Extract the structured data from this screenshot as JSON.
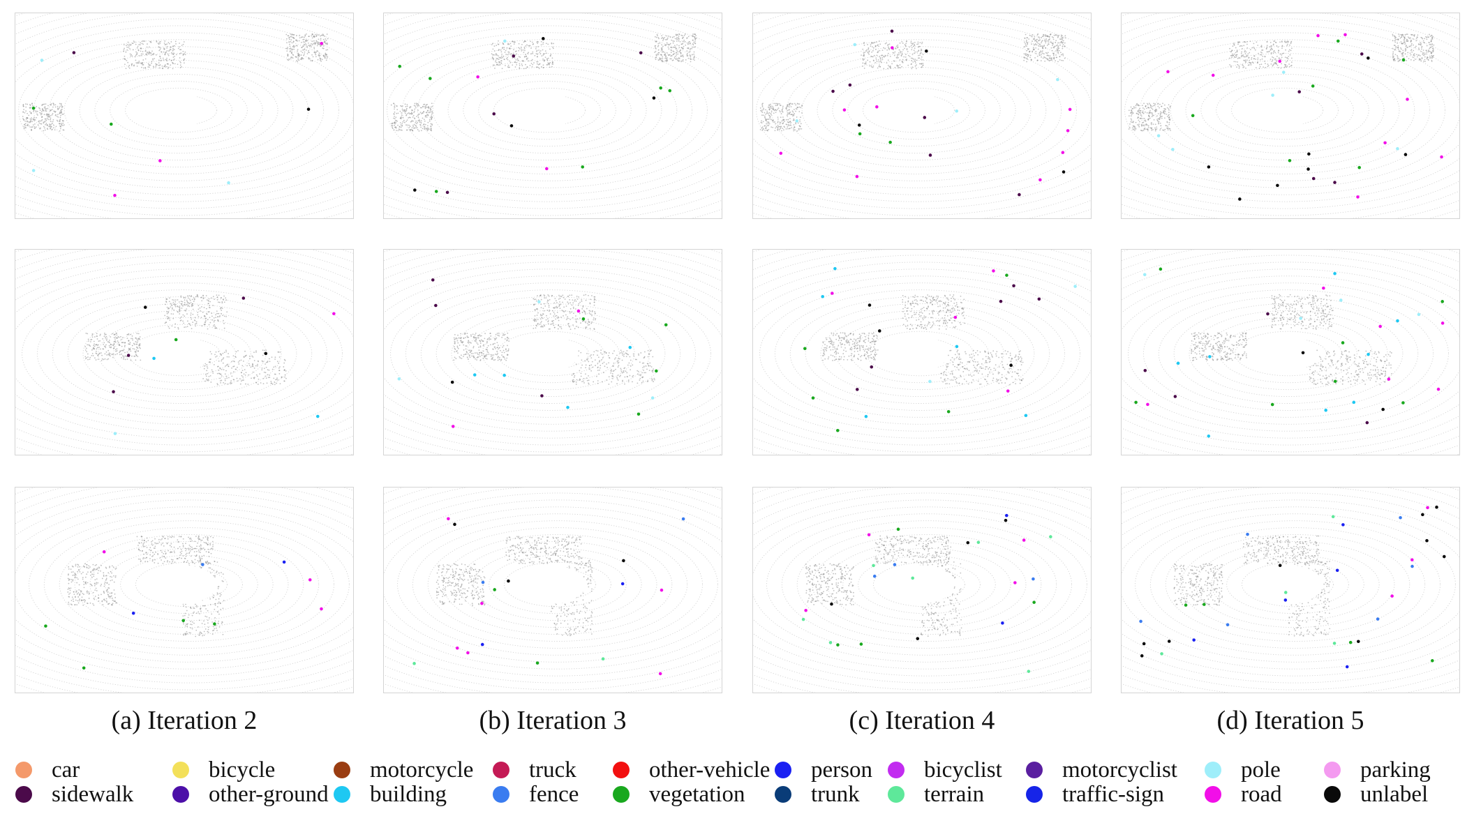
{
  "figure": {
    "captions": [
      "(a) Iteration 2",
      "(b) Iteration 3",
      "(c) Iteration 4",
      "(d) Iteration 5"
    ],
    "legend": [
      {
        "label": "car",
        "color": "#f4996a"
      },
      {
        "label": "sidewalk",
        "color": "#4b0a4a"
      },
      {
        "label": "bicycle",
        "color": "#f3e05a"
      },
      {
        "label": "other-ground",
        "color": "#4c0fa8"
      },
      {
        "label": "motorcycle",
        "color": "#9a3d12"
      },
      {
        "label": "building",
        "color": "#1ec8f2"
      },
      {
        "label": "truck",
        "color": "#c41a55"
      },
      {
        "label": "fence",
        "color": "#3a7cf0"
      },
      {
        "label": "other-vehicle",
        "color": "#f21010"
      },
      {
        "label": "vegetation",
        "color": "#19a81e"
      },
      {
        "label": "person",
        "color": "#1a20f2"
      },
      {
        "label": "trunk",
        "color": "#0a3c78"
      },
      {
        "label": "bicyclist",
        "color": "#c22cf0"
      },
      {
        "label": "terrain",
        "color": "#5ee89a"
      },
      {
        "label": "motorcyclist",
        "color": "#5a1fa0"
      },
      {
        "label": "traffic-sign",
        "color": "#1624e8"
      },
      {
        "label": "pole",
        "color": "#9eeefa"
      },
      {
        "label": "road",
        "color": "#f20fe8"
      },
      {
        "label": "parking",
        "color": "#f49af0"
      },
      {
        "label": "unlabel",
        "color": "#0a0a0a"
      }
    ]
  }
}
